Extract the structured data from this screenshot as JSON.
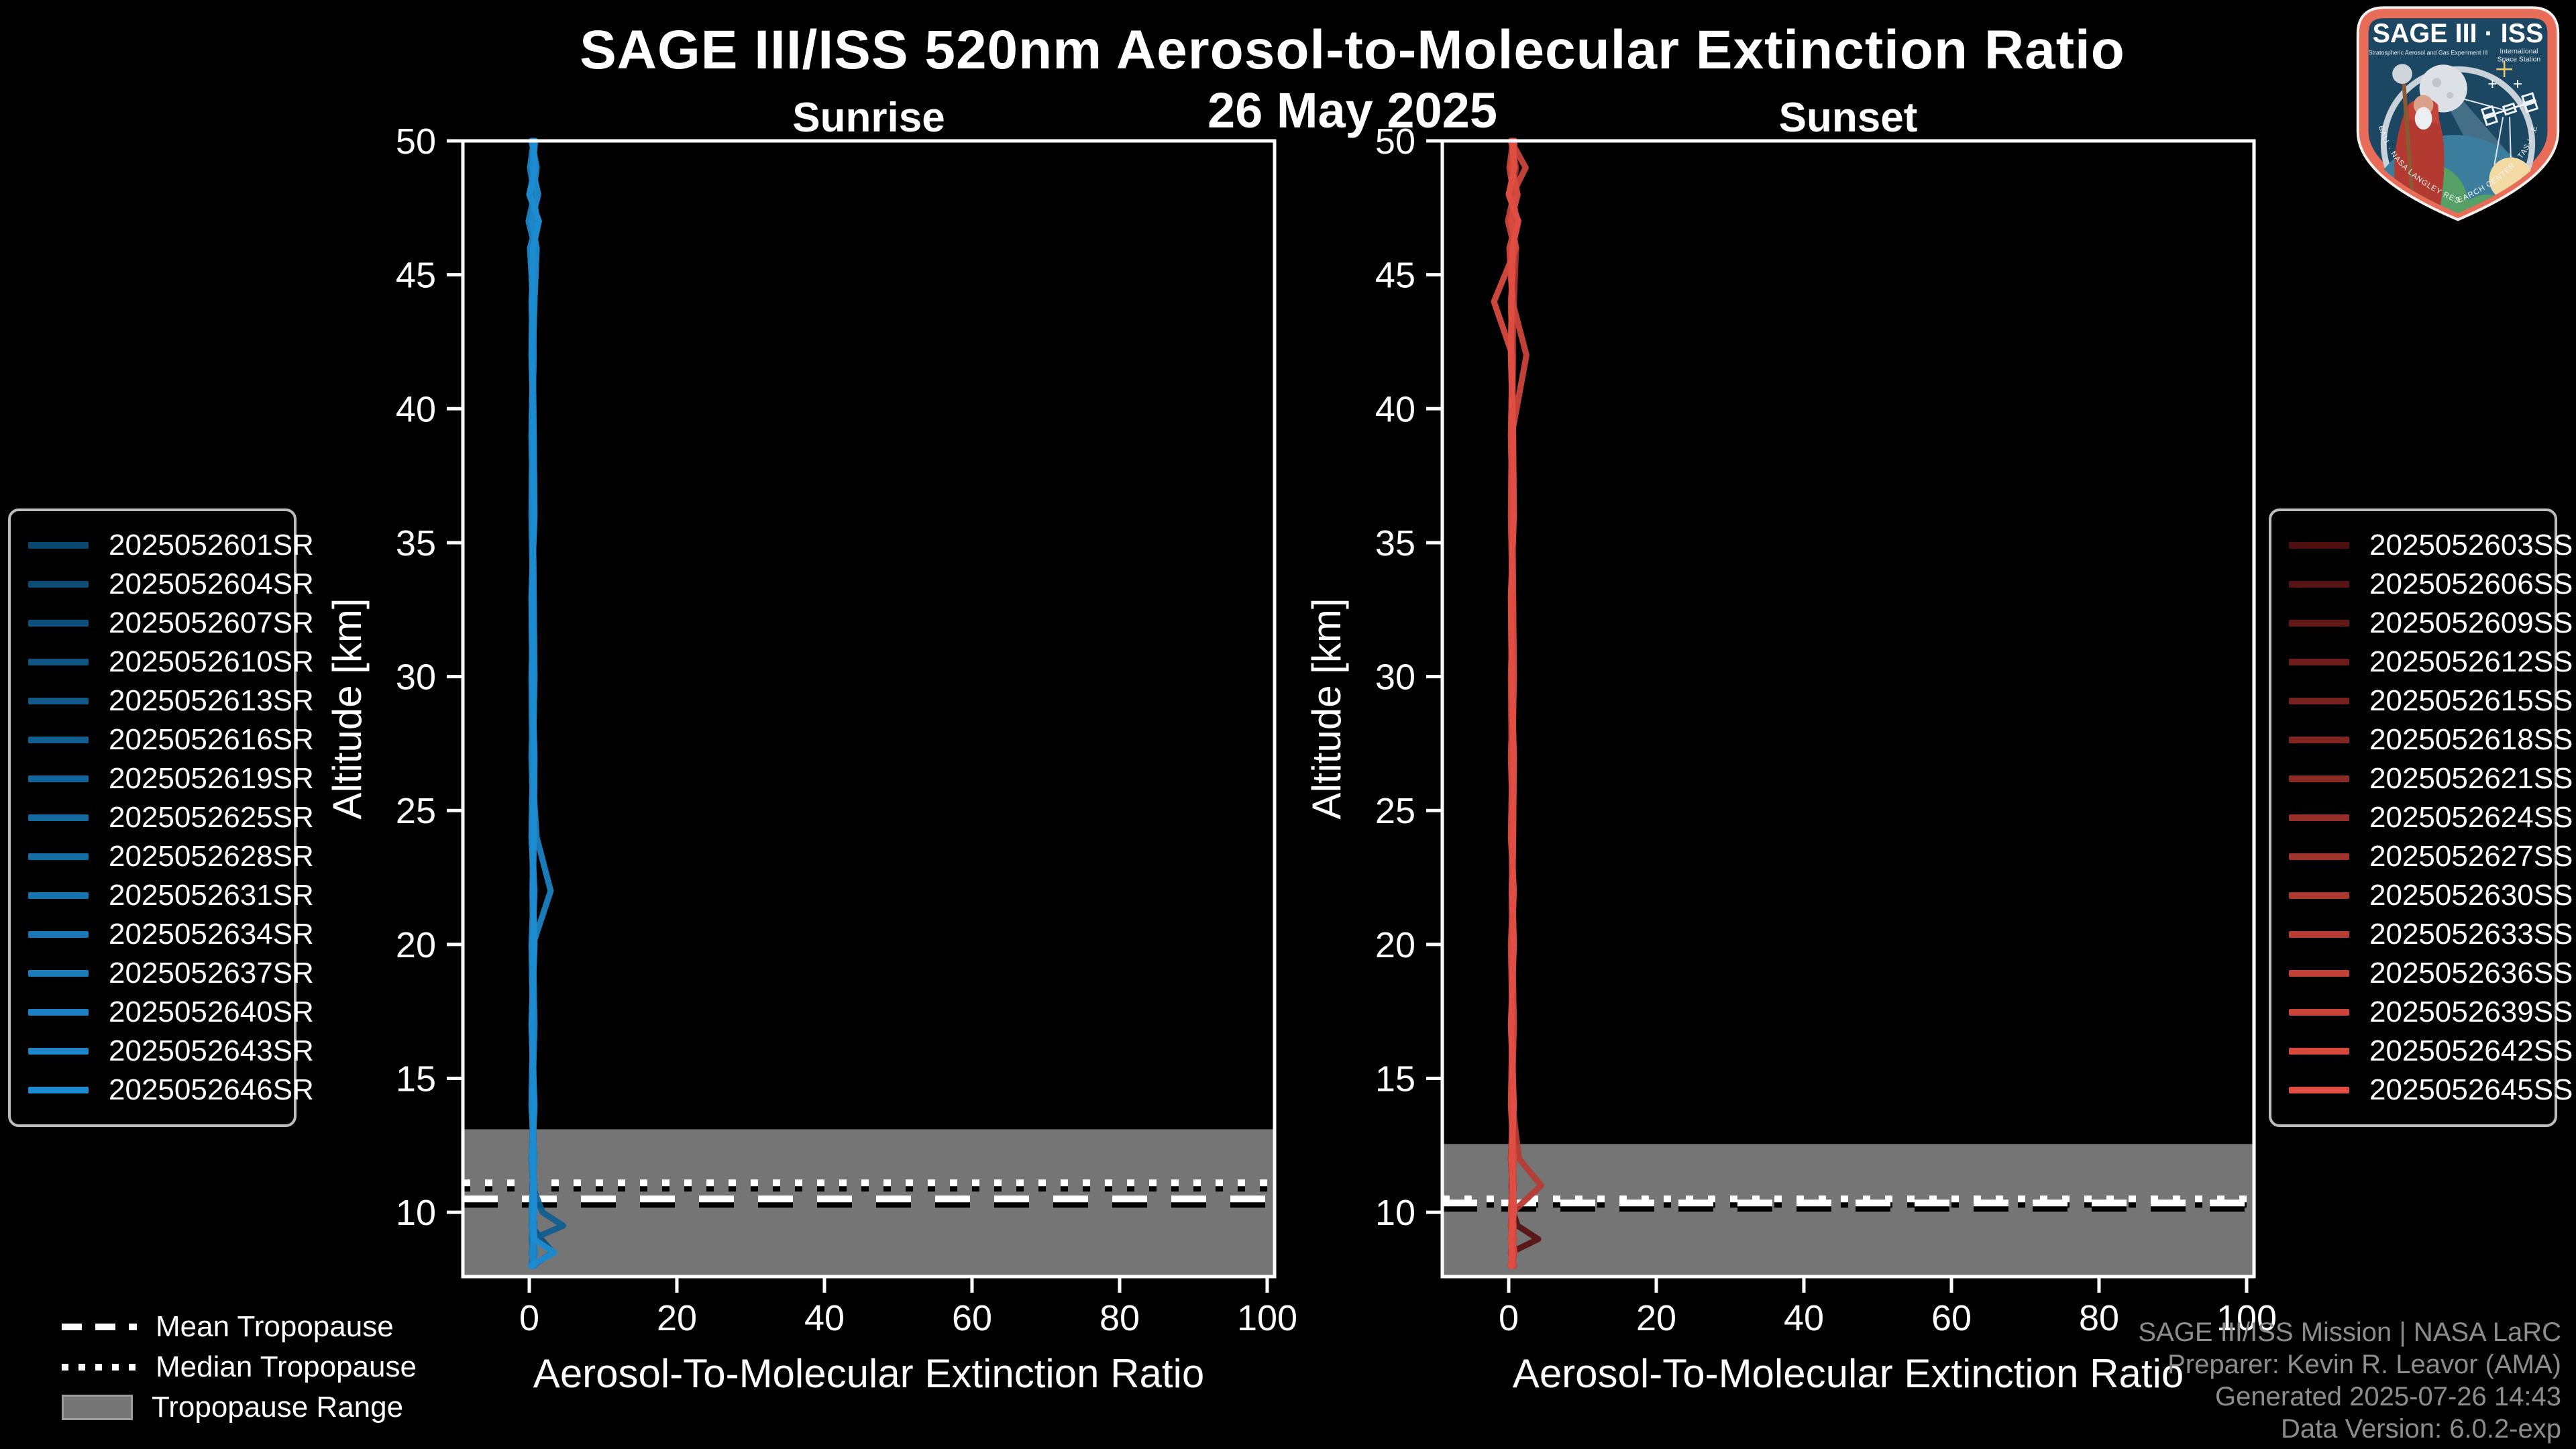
{
  "header": {
    "title": "SAGE III/ISS 520nm Aerosol-to-Molecular Extinction Ratio",
    "date": "26 May 2025"
  },
  "tropopause_legend": {
    "mean": "Mean Tropopause",
    "median": "Median Tropopause",
    "range": "Tropopause Range"
  },
  "footer": {
    "line1": "SAGE III/ISS Mission | NASA LaRC",
    "line2": "Preparer: Kevin R. Leavor (AMA)",
    "line3": "Generated 2025-07-26 14:43",
    "line4": "Data Version: 6.0.2-exp"
  },
  "logo": {
    "title": "SAGE III · ISS",
    "subtitle_left": "Stratospheric Aerosol and Gas Experiment III",
    "subtitle_right_1": "International",
    "subtitle_right_2": "Space Station",
    "border_text": "BALL · NASA LANGLEY RESEARCH CENTER · TAS-I · ESA"
  },
  "style": {
    "background": "#000000",
    "text_color": "#ffffff",
    "muted_text_color": "#8d8d8d",
    "band_color": "#757575",
    "legend_border_color": "#bdbdbd",
    "sunrise_color_start": "#0a466e",
    "sunrise_color_end": "#1e8bd0",
    "sunset_color_start": "#4d0f10",
    "sunset_color_end": "#e04e42"
  },
  "chart_data": [
    {
      "type": "line",
      "panel": "Sunrise",
      "xlabel": "Aerosol-To-Molecular Extinction Ratio",
      "ylabel": "Altitude [km]",
      "xlim": [
        -9,
        101
      ],
      "ylim": [
        7.6,
        50
      ],
      "xticks": [
        0,
        20,
        40,
        60,
        80,
        100
      ],
      "yticks": [
        10,
        15,
        20,
        25,
        30,
        35,
        40,
        45,
        50
      ],
      "grid": false,
      "tropopause": {
        "mean_km": 10.5,
        "median_km": 11.1,
        "range_top_km": 13.1,
        "range_bottom_km": 7.6
      },
      "altitudes_km": [
        8,
        8.5,
        9,
        9.5,
        10,
        11,
        12,
        14,
        17,
        20,
        22,
        24,
        27,
        30,
        33,
        36,
        39,
        42,
        44,
        46,
        47,
        48,
        49,
        50
      ],
      "series": [
        {
          "name": "2025052601SR",
          "color": "#0a466e",
          "values": [
            0.5,
            0.6,
            0.4,
            0.7,
            0.5,
            0.4,
            0.6,
            0.5,
            0.4,
            0.6,
            0.5,
            0.4,
            0.6,
            0.5,
            0.4,
            0.6,
            0.5,
            0.4,
            0.6,
            0.3,
            0.9,
            0.2,
            0.7,
            0.4
          ]
        },
        {
          "name": "2025052604SR",
          "color": "#0b4b75",
          "values": [
            0.7,
            0.3,
            0.6,
            0.4,
            0.6,
            0.5,
            0.3,
            0.6,
            0.5,
            0.3,
            0.6,
            0.5,
            0.4,
            0.3,
            0.6,
            0.4,
            0.6,
            0.5,
            0.3,
            0.8,
            -0.1,
            0.7,
            0.1,
            0.6
          ]
        },
        {
          "name": "2025052607SR",
          "color": "#0d507c",
          "values": [
            0.4,
            3.2,
            1.6,
            0.3,
            0.4,
            0.7,
            0.5,
            0.4,
            0.7,
            0.5,
            0.4,
            0.6,
            0.3,
            0.6,
            0.5,
            0.3,
            0.4,
            0.6,
            0.5,
            0.1,
            1.1,
            0.5,
            1.0,
            0.3
          ]
        },
        {
          "name": "2025052610SR",
          "color": "#0e5583",
          "values": [
            0.6,
            0.4,
            0.7,
            0.6,
            0.3,
            0.5,
            0.7,
            0.3,
            0.5,
            0.4,
            0.7,
            0.3,
            0.5,
            0.7,
            0.6,
            0.5,
            0.3,
            0.5,
            0.7,
            1.0,
            0.3,
            1.2,
            0.4,
            0.8
          ]
        },
        {
          "name": "2025052613SR",
          "color": "#105a8a",
          "values": [
            0.3,
            0.5,
            0.3,
            0.5,
            0.7,
            0.6,
            0.4,
            0.7,
            0.3,
            0.7,
            0.5,
            0.6,
            0.7,
            0.4,
            0.3,
            0.7,
            0.6,
            0.3,
            0.4,
            0.5,
            1.3,
            0.0,
            0.8,
            0.5
          ]
        },
        {
          "name": "2025052616SR",
          "color": "#115f91",
          "values": [
            0.5,
            0.6,
            0.4,
            4.6,
            1.8,
            0.4,
            0.6,
            0.5,
            0.4,
            0.6,
            0.5,
            0.4,
            0.6,
            0.5,
            0.4,
            0.6,
            0.5,
            0.4,
            0.6,
            0.3,
            0.9,
            0.2,
            0.7,
            0.4
          ]
        },
        {
          "name": "2025052619SR",
          "color": "#136498",
          "values": [
            0.7,
            0.3,
            0.6,
            0.4,
            0.6,
            0.5,
            0.3,
            0.6,
            0.5,
            0.3,
            0.6,
            0.5,
            0.4,
            0.3,
            0.6,
            0.4,
            0.6,
            0.5,
            0.3,
            0.8,
            -0.1,
            0.7,
            0.1,
            0.6
          ]
        },
        {
          "name": "2025052625SR",
          "color": "#14699f",
          "values": [
            0.4,
            0.8,
            0.5,
            0.3,
            0.4,
            0.7,
            0.5,
            0.4,
            0.7,
            0.5,
            0.4,
            0.6,
            0.3,
            0.6,
            0.5,
            0.3,
            0.4,
            0.6,
            0.5,
            0.1,
            1.1,
            0.5,
            1.0,
            0.3
          ]
        },
        {
          "name": "2025052628SR",
          "color": "#156da6",
          "values": [
            0.6,
            0.4,
            0.7,
            0.6,
            0.3,
            0.5,
            0.7,
            0.3,
            0.5,
            0.4,
            0.7,
            0.3,
            0.5,
            0.7,
            0.6,
            0.5,
            0.3,
            0.5,
            0.7,
            1.0,
            0.3,
            1.2,
            0.4,
            0.8
          ]
        },
        {
          "name": "2025052631SR",
          "color": "#1772ad",
          "values": [
            0.3,
            0.5,
            0.3,
            0.5,
            0.7,
            0.6,
            0.4,
            0.7,
            0.3,
            0.7,
            0.5,
            0.6,
            0.7,
            0.4,
            0.3,
            0.7,
            0.6,
            0.3,
            0.4,
            0.5,
            1.3,
            0.0,
            0.8,
            0.5
          ]
        },
        {
          "name": "2025052634SR",
          "color": "#1877b4",
          "values": [
            0.5,
            0.6,
            0.4,
            0.7,
            0.5,
            0.4,
            0.6,
            0.5,
            0.4,
            0.6,
            0.5,
            0.4,
            0.6,
            0.5,
            0.4,
            0.6,
            0.5,
            0.4,
            0.6,
            0.3,
            0.9,
            0.2,
            0.7,
            0.4
          ]
        },
        {
          "name": "2025052637SR",
          "color": "#1a7cbb",
          "values": [
            0.7,
            0.3,
            0.6,
            0.4,
            0.6,
            0.5,
            0.3,
            0.6,
            0.5,
            0.3,
            0.6,
            0.5,
            0.4,
            0.3,
            0.6,
            0.4,
            0.6,
            0.5,
            0.3,
            0.8,
            -0.1,
            0.7,
            0.1,
            0.6
          ]
        },
        {
          "name": "2025052640SR",
          "color": "#1b81c2",
          "values": [
            0.4,
            0.8,
            0.5,
            0.3,
            0.4,
            0.7,
            0.5,
            0.4,
            0.7,
            0.5,
            2.9,
            1.0,
            0.3,
            0.6,
            0.5,
            0.3,
            0.4,
            0.6,
            0.5,
            0.1,
            1.1,
            0.5,
            1.0,
            0.3
          ]
        },
        {
          "name": "2025052643SR",
          "color": "#1d86c9",
          "values": [
            0.6,
            0.4,
            0.7,
            0.6,
            0.3,
            0.5,
            0.7,
            0.3,
            0.5,
            0.4,
            0.7,
            0.3,
            0.5,
            0.7,
            0.6,
            0.5,
            0.3,
            0.5,
            0.7,
            1.0,
            0.3,
            1.2,
            0.4,
            0.8
          ]
        },
        {
          "name": "2025052646SR",
          "color": "#1e8bd0",
          "values": [
            0.2,
            3.4,
            0.6,
            0.5,
            0.7,
            0.6,
            0.4,
            0.7,
            0.3,
            0.7,
            0.5,
            0.6,
            0.7,
            0.4,
            0.3,
            0.7,
            0.6,
            0.3,
            0.4,
            0.5,
            1.3,
            0.0,
            0.8,
            0.5
          ]
        }
      ]
    },
    {
      "type": "line",
      "panel": "Sunset",
      "xlabel": "Aerosol-To-Molecular Extinction Ratio",
      "ylabel": "Altitude [km]",
      "xlim": [
        -9,
        101
      ],
      "ylim": [
        7.6,
        50
      ],
      "xticks": [
        0,
        20,
        40,
        60,
        80,
        100
      ],
      "yticks": [
        10,
        15,
        20,
        25,
        30,
        35,
        40,
        45,
        50
      ],
      "grid": false,
      "tropopause": {
        "mean_km": 10.35,
        "median_km": 10.5,
        "range_top_km": 12.55,
        "range_bottom_km": 7.6
      },
      "altitudes_km": [
        8,
        8.5,
        9,
        9.5,
        10,
        11,
        12,
        14,
        17,
        20,
        22,
        24,
        27,
        30,
        33,
        36,
        39,
        42,
        44,
        46,
        47,
        48,
        49,
        50
      ],
      "series": [
        {
          "name": "2025052603SS",
          "color": "#4d0f10",
          "values": [
            0.5,
            0.6,
            0.4,
            0.7,
            0.5,
            0.4,
            0.6,
            0.5,
            0.4,
            0.6,
            0.5,
            0.4,
            0.6,
            0.5,
            0.4,
            0.6,
            0.5,
            0.4,
            0.6,
            0.3,
            0.9,
            0.2,
            0.7,
            0.4
          ]
        },
        {
          "name": "2025052606SS",
          "color": "#581414",
          "values": [
            0.7,
            0.3,
            4.0,
            1.2,
            0.6,
            0.5,
            0.3,
            0.6,
            0.5,
            0.3,
            0.6,
            0.5,
            0.4,
            0.3,
            0.6,
            0.4,
            0.6,
            0.5,
            0.3,
            0.8,
            -0.1,
            0.7,
            0.1,
            0.6
          ]
        },
        {
          "name": "2025052609SS",
          "color": "#621817",
          "values": [
            0.4,
            0.8,
            0.5,
            0.3,
            0.4,
            0.7,
            0.5,
            0.4,
            0.7,
            0.5,
            0.4,
            0.6,
            0.3,
            0.6,
            0.5,
            0.3,
            0.4,
            0.6,
            0.5,
            0.1,
            1.1,
            0.5,
            1.0,
            0.3
          ]
        },
        {
          "name": "2025052612SS",
          "color": "#6d1d1b",
          "values": [
            0.6,
            0.4,
            0.7,
            0.6,
            0.3,
            0.5,
            0.7,
            0.3,
            0.5,
            0.4,
            0.7,
            0.3,
            0.5,
            0.7,
            0.6,
            0.5,
            0.3,
            0.5,
            0.7,
            1.0,
            0.3,
            1.2,
            0.4,
            0.8
          ]
        },
        {
          "name": "2025052615SS",
          "color": "#77211e",
          "values": [
            0.3,
            0.5,
            0.3,
            0.5,
            0.7,
            0.6,
            0.4,
            0.7,
            0.3,
            0.7,
            0.5,
            0.6,
            0.7,
            0.4,
            0.3,
            0.7,
            0.6,
            0.3,
            0.4,
            0.5,
            1.3,
            0.0,
            0.8,
            0.5
          ]
        },
        {
          "name": "2025052618SS",
          "color": "#822622",
          "values": [
            0.5,
            0.6,
            0.4,
            0.7,
            0.5,
            0.4,
            0.6,
            0.5,
            0.4,
            0.6,
            0.5,
            0.4,
            0.6,
            0.5,
            0.4,
            0.6,
            0.5,
            0.4,
            0.6,
            0.3,
            0.9,
            0.2,
            0.7,
            0.4
          ]
        },
        {
          "name": "2025052621SS",
          "color": "#8c2a25",
          "values": [
            0.7,
            0.3,
            0.6,
            0.4,
            0.6,
            0.5,
            0.3,
            0.6,
            0.5,
            0.3,
            0.6,
            0.5,
            0.4,
            0.3,
            0.6,
            0.4,
            0.6,
            0.5,
            0.3,
            0.8,
            -0.1,
            0.7,
            0.1,
            0.6
          ]
        },
        {
          "name": "2025052624SS",
          "color": "#972f29",
          "values": [
            0.4,
            0.8,
            0.5,
            0.3,
            0.4,
            0.7,
            0.5,
            0.4,
            0.7,
            0.5,
            0.4,
            0.6,
            0.3,
            0.6,
            0.5,
            0.3,
            0.4,
            0.6,
            0.5,
            0.1,
            1.1,
            0.5,
            1.0,
            0.3
          ]
        },
        {
          "name": "2025052627SS",
          "color": "#a1332d",
          "values": [
            0.6,
            0.4,
            0.7,
            0.6,
            0.3,
            0.5,
            0.7,
            0.3,
            0.5,
            0.4,
            0.7,
            0.3,
            0.5,
            0.7,
            0.6,
            0.5,
            0.3,
            0.5,
            0.7,
            1.0,
            0.3,
            1.2,
            0.4,
            0.8
          ]
        },
        {
          "name": "2025052630SS",
          "color": "#ac3830",
          "values": [
            0.3,
            0.5,
            0.3,
            0.5,
            0.7,
            0.6,
            0.4,
            0.7,
            0.3,
            0.7,
            0.5,
            0.6,
            0.7,
            0.4,
            0.3,
            0.7,
            0.6,
            0.3,
            0.4,
            0.5,
            1.3,
            0.0,
            0.8,
            0.5
          ]
        },
        {
          "name": "2025052633SS",
          "color": "#b63c34",
          "values": [
            0.5,
            0.6,
            0.4,
            0.7,
            0.5,
            4.4,
            1.4,
            0.5,
            0.4,
            0.6,
            0.5,
            0.4,
            0.6,
            0.5,
            0.4,
            0.6,
            0.5,
            0.4,
            0.6,
            0.3,
            0.9,
            0.2,
            0.7,
            0.4
          ]
        },
        {
          "name": "2025052636SS",
          "color": "#c14137",
          "values": [
            0.7,
            0.3,
            0.6,
            0.4,
            0.6,
            0.5,
            0.3,
            0.6,
            0.5,
            0.3,
            0.6,
            0.5,
            0.4,
            0.3,
            0.6,
            0.4,
            0.6,
            0.5,
            0.3,
            0.8,
            -0.1,
            0.7,
            0.1,
            0.6
          ]
        },
        {
          "name": "2025052639SS",
          "color": "#cb453b",
          "values": [
            0.4,
            0.8,
            0.5,
            0.3,
            0.4,
            0.7,
            0.5,
            0.4,
            0.7,
            0.5,
            0.4,
            0.6,
            0.3,
            0.6,
            0.5,
            0.3,
            0.4,
            2.4,
            0.5,
            0.1,
            1.1,
            0.5,
            2.3,
            0.3
          ]
        },
        {
          "name": "2025052642SS",
          "color": "#d64a3e",
          "values": [
            0.6,
            0.4,
            0.7,
            0.6,
            0.3,
            0.5,
            0.7,
            0.3,
            0.5,
            0.4,
            0.7,
            0.3,
            0.5,
            0.7,
            0.6,
            0.5,
            0.3,
            0.5,
            -2.0,
            1.0,
            0.3,
            1.2,
            0.4,
            0.8
          ]
        },
        {
          "name": "2025052645SS",
          "color": "#e04e42",
          "values": [
            0.3,
            0.5,
            0.3,
            0.5,
            0.7,
            0.6,
            0.4,
            0.7,
            0.3,
            0.7,
            0.5,
            0.6,
            0.7,
            0.4,
            0.3,
            0.7,
            0.6,
            0.3,
            0.4,
            0.5,
            1.3,
            0.0,
            0.8,
            0.5
          ]
        }
      ]
    }
  ]
}
